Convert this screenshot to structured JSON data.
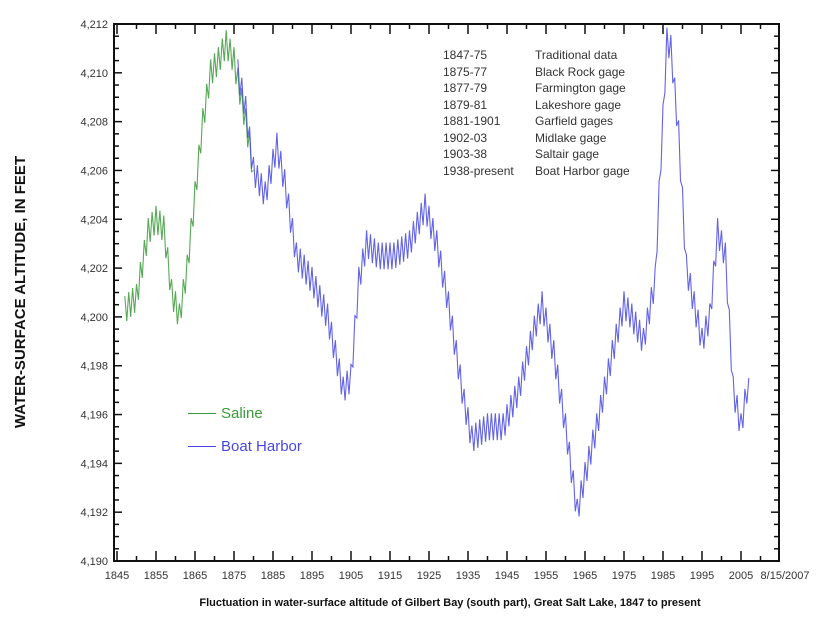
{
  "chart_data": {
    "type": "line",
    "title": "",
    "xlabel": "Fluctuation in water-surface altitude of Gilbert Bay (south part), Great Salt Lake, 1847 to present",
    "ylabel": "WATER-SURFACE ALTITUDE, IN FEET",
    "xlim": [
      1845,
      2013
    ],
    "ylim": [
      4190,
      4212
    ],
    "x_ticks": [
      "1845",
      "1855",
      "1865",
      "1875",
      "1885",
      "1895",
      "1905",
      "1915",
      "1925",
      "1935",
      "1945",
      "1955",
      "1965",
      "1975",
      "1985",
      "1995",
      "2005",
      "8/15/2007"
    ],
    "y_ticks": [
      "4,190",
      "4,192",
      "4,194",
      "4,196",
      "4,198",
      "4,200",
      "4,202",
      "4,204",
      "4,206",
      "4,208",
      "4,210",
      "4,212"
    ],
    "grid": false,
    "legend_position": "lower-left inside",
    "series": [
      {
        "name": "Saline",
        "color": "#3a9a3a",
        "x": [
          1847,
          1850,
          1853,
          1855,
          1857,
          1859,
          1861,
          1863,
          1865,
          1867,
          1869,
          1871,
          1873,
          1875,
          1878,
          1880
        ],
        "values": [
          4200.3,
          4200.8,
          4203.5,
          4204.0,
          4203.6,
          4201.0,
          4200.0,
          4202.0,
          4205.0,
          4208.0,
          4210.0,
          4210.5,
          4211.2,
          4210.5,
          4208.0,
          4206.0
        ]
      },
      {
        "name": "Boat Harbor",
        "color": "#4848e0",
        "x": [
          1876,
          1878,
          1880,
          1883,
          1886,
          1888,
          1891,
          1895,
          1899,
          1903,
          1905,
          1907,
          1909,
          1912,
          1916,
          1920,
          1924,
          1927,
          1930,
          1934,
          1936,
          1940,
          1944,
          1948,
          1952,
          1954,
          1957,
          1960,
          1963,
          1965,
          1968,
          1972,
          1975,
          1977,
          1980,
          1983,
          1984,
          1986,
          1987,
          1989,
          1991,
          1993,
          1995,
          1997,
          1999,
          2001,
          2003,
          2005,
          2007
        ],
        "values": [
          4210.0,
          4208.5,
          4206.0,
          4205.0,
          4207.0,
          4205.5,
          4202.5,
          4201.5,
          4200.0,
          4197.0,
          4197.5,
          4201.5,
          4203.0,
          4202.5,
          4202.5,
          4203.0,
          4204.5,
          4203.0,
          4200.5,
          4196.5,
          4195.0,
          4195.5,
          4195.5,
          4197.0,
          4199.5,
          4200.5,
          4198.5,
          4195.5,
          4192.0,
          4193.5,
          4195.5,
          4198.5,
          4200.5,
          4200.0,
          4199.0,
          4201.5,
          4205.0,
          4211.3,
          4211.0,
          4207.5,
          4202.0,
          4200.5,
          4199.0,
          4200.0,
          4203.5,
          4202.5,
          4197.0,
          4195.5,
          4197.5
        ]
      }
    ],
    "annotations": [
      {
        "period": "1847-75",
        "source": "Traditional data"
      },
      {
        "period": "1875-77",
        "source": "Black Rock gage"
      },
      {
        "period": "1877-79",
        "source": "Farmington gage"
      },
      {
        "period": "1879-81",
        "source": "Lakeshore gage"
      },
      {
        "period": "1881-1901",
        "source": "Garfield gages"
      },
      {
        "period": "1902-03",
        "source": "Midlake gage"
      },
      {
        "period": "1903-38",
        "source": "Saltair gage"
      },
      {
        "period": "1938-present",
        "source": "Boat Harbor gage"
      }
    ]
  },
  "legend": {
    "items": [
      {
        "label": "Saline",
        "color": "#3a9a3a"
      },
      {
        "label": "Boat Harbor",
        "color": "#4848e0"
      }
    ]
  }
}
